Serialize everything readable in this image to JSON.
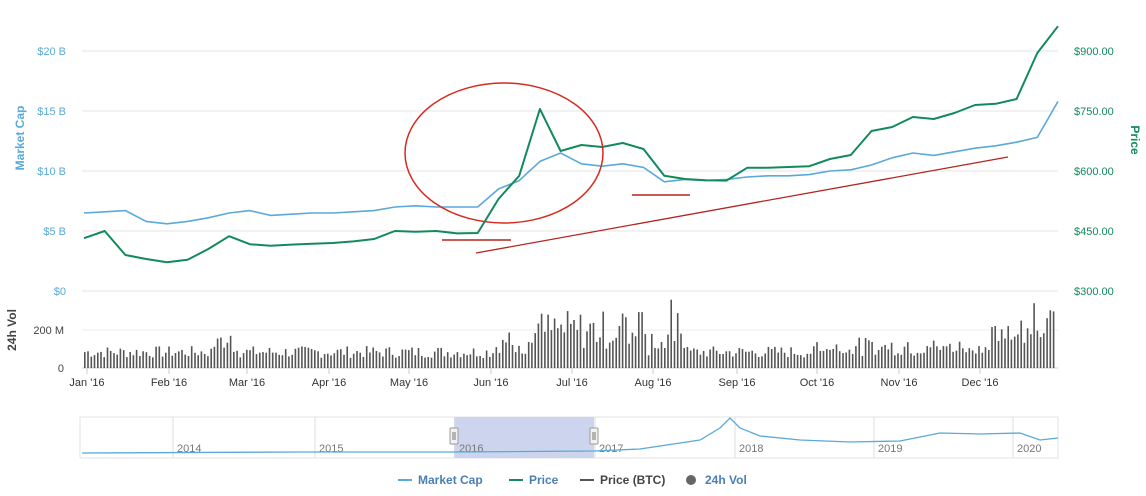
{
  "chart_data": {
    "type": "line",
    "x_axis": {
      "ticks": [
        "Jan '16",
        "Feb '16",
        "Mar '16",
        "Apr '16",
        "May '16",
        "Jun '16",
        "Jul '16",
        "Aug '16",
        "Sep '16",
        "Oct '16",
        "Nov '16",
        "Dec '16"
      ]
    },
    "y_left": {
      "title": "Market Cap",
      "ticks": [
        "$0",
        "$5 B",
        "$10 B",
        "$15 B",
        "$20 B"
      ],
      "range": [
        0,
        22
      ]
    },
    "y_right": {
      "title": "Price",
      "ticks": [
        "$300.00",
        "$450.00",
        "$600.00",
        "$750.00",
        "$900.00"
      ],
      "range": [
        300,
        955
      ]
    },
    "volume_axis": {
      "title": "24h Vol",
      "ticks": [
        "0",
        "200 M"
      ]
    },
    "series": [
      {
        "name": "Market Cap",
        "color": "#5aa9d8",
        "unit": "B USD",
        "points": [
          [
            "Jan '16",
            6.5
          ],
          [
            "Jan '16 wk2",
            6.6
          ],
          [
            "Jan '16 wk3",
            6.7
          ],
          [
            "Jan '16 wk4",
            5.8
          ],
          [
            "Feb '16",
            5.6
          ],
          [
            "Feb '16 wk2",
            5.8
          ],
          [
            "Feb '16 wk3",
            6.1
          ],
          [
            "Feb '16 wk4",
            6.5
          ],
          [
            "Mar '16",
            6.7
          ],
          [
            "Mar '16 wk2",
            6.3
          ],
          [
            "Mar '16 wk3",
            6.4
          ],
          [
            "Mar '16 wk4",
            6.5
          ],
          [
            "Apr '16",
            6.5
          ],
          [
            "Apr '16 wk2",
            6.6
          ],
          [
            "Apr '16 wk3",
            6.7
          ],
          [
            "Apr '16 wk4",
            7.0
          ],
          [
            "May '16",
            7.1
          ],
          [
            "May '16 wk2",
            7.0
          ],
          [
            "May '16 wk3",
            7.0
          ],
          [
            "May '16 wk4",
            7.0
          ],
          [
            "Jun '16",
            8.5
          ],
          [
            "Jun '16 wk2",
            9.2
          ],
          [
            "Jun '16 wk3",
            10.8
          ],
          [
            "Jun '16 wk4",
            11.5
          ],
          [
            "Jul '16",
            10.6
          ],
          [
            "Jul '16 wk2",
            10.4
          ],
          [
            "Jul '16 wk3",
            10.6
          ],
          [
            "Jul '16 wk4",
            10.3
          ],
          [
            "Aug '16",
            9.1
          ],
          [
            "Aug '16 wk2",
            9.3
          ],
          [
            "Aug '16 wk3",
            9.2
          ],
          [
            "Aug '16 wk4",
            9.3
          ],
          [
            "Sep '16",
            9.5
          ],
          [
            "Sep '16 wk2",
            9.6
          ],
          [
            "Sep '16 wk3",
            9.6
          ],
          [
            "Sep '16 wk4",
            9.7
          ],
          [
            "Oct '16",
            10.0
          ],
          [
            "Oct '16 wk2",
            10.1
          ],
          [
            "Oct '16 wk3",
            10.5
          ],
          [
            "Oct '16 wk4",
            11.1
          ],
          [
            "Nov '16",
            11.5
          ],
          [
            "Nov '16 wk2",
            11.3
          ],
          [
            "Nov '16 wk3",
            11.6
          ],
          [
            "Nov '16 wk4",
            11.9
          ],
          [
            "Dec '16",
            12.1
          ],
          [
            "Dec '16 wk2",
            12.4
          ],
          [
            "Dec '16 wk3",
            12.8
          ],
          [
            "Dec '16 wk4",
            15.8
          ]
        ]
      },
      {
        "name": "Price",
        "color": "#138a5b",
        "unit": "USD",
        "points": [
          [
            "Jan '16",
            432
          ],
          [
            "Jan '16 wk2",
            450
          ],
          [
            "Jan '16 wk3",
            390
          ],
          [
            "Jan '16 wk4",
            380
          ],
          [
            "Feb '16",
            372
          ],
          [
            "Feb '16 wk2",
            378
          ],
          [
            "Feb '16 wk3",
            405
          ],
          [
            "Feb '16 wk4",
            437
          ],
          [
            "Mar '16",
            417
          ],
          [
            "Mar '16 wk2",
            413
          ],
          [
            "Mar '16 wk3",
            416
          ],
          [
            "Mar '16 wk4",
            418
          ],
          [
            "Apr '16",
            420
          ],
          [
            "Apr '16 wk2",
            424
          ],
          [
            "Apr '16 wk3",
            430
          ],
          [
            "Apr '16 wk4",
            450
          ],
          [
            "May '16",
            448
          ],
          [
            "May '16 wk2",
            450
          ],
          [
            "May '16 wk3",
            444
          ],
          [
            "May '16 wk4",
            445
          ],
          [
            "Jun '16",
            530
          ],
          [
            "Jun '16 wk2",
            588
          ],
          [
            "Jun '16 wk3",
            755
          ],
          [
            "Jun '16 wk4",
            650
          ],
          [
            "Jul '16",
            665
          ],
          [
            "Jul '16 wk2",
            660
          ],
          [
            "Jul '16 wk3",
            670
          ],
          [
            "Jul '16 wk4",
            655
          ],
          [
            "Aug '16",
            588
          ],
          [
            "Aug '16 wk2",
            580
          ],
          [
            "Aug '16 wk3",
            577
          ],
          [
            "Aug '16 wk4",
            576
          ],
          [
            "Sep '16",
            608
          ],
          [
            "Sep '16 wk2",
            608
          ],
          [
            "Sep '16 wk3",
            610
          ],
          [
            "Sep '16 wk4",
            612
          ],
          [
            "Oct '16",
            630
          ],
          [
            "Oct '16 wk2",
            640
          ],
          [
            "Oct '16 wk3",
            700
          ],
          [
            "Oct '16 wk4",
            710
          ],
          [
            "Nov '16",
            735
          ],
          [
            "Nov '16 wk2",
            730
          ],
          [
            "Nov '16 wk3",
            745
          ],
          [
            "Nov '16 wk4",
            765
          ],
          [
            "Dec '16",
            768
          ],
          [
            "Dec '16 wk2",
            780
          ],
          [
            "Dec '16 wk3",
            895
          ],
          [
            "Dec '16 wk4",
            962
          ]
        ]
      }
    ],
    "volume_bar_color": "#555555",
    "navigator": {
      "years": [
        "2014",
        "2015",
        "2016",
        "2017",
        "2018",
        "2019",
        "2020"
      ],
      "line_color": "#5aa9d8",
      "selection_color": "#c9d3ec"
    },
    "annotations": [
      {
        "type": "ellipse",
        "color": "#d62b1f",
        "around": "Jun '16 – Jul '16 rally"
      },
      {
        "type": "trendline",
        "color": "#b3261e"
      },
      {
        "type": "support-line",
        "color": "#b3261e",
        "near": "May '16"
      },
      {
        "type": "support-line",
        "color": "#b3261e",
        "near": "Aug '16"
      }
    ],
    "legend": {
      "placement": "bottom",
      "items": [
        {
          "label": "Market Cap",
          "color": "#5aa9d8",
          "symbol": "line"
        },
        {
          "label": "Price",
          "color": "#138a5b",
          "symbol": "line"
        },
        {
          "label": "Price (BTC)",
          "color": "#555555",
          "symbol": "line"
        },
        {
          "label": "24h Vol",
          "color": "#666666",
          "symbol": "dot"
        }
      ]
    },
    "grid": true
  }
}
